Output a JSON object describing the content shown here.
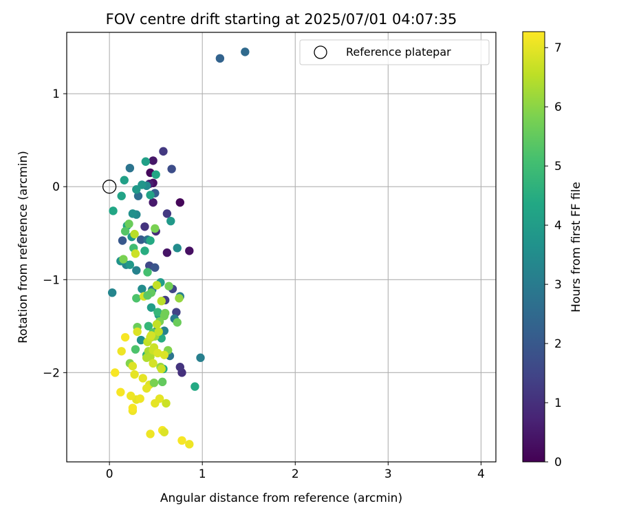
{
  "chart_data": {
    "type": "scatter",
    "title": "FOV centre drift starting at 2025/07/01 04:07:35",
    "xlabel": "Angular distance from reference (arcmin)",
    "ylabel": "Rotation from reference (arcmin)",
    "xlim": [
      -0.46,
      4.16
    ],
    "ylim": [
      -2.96,
      1.66
    ],
    "xticks": [
      0,
      1,
      2,
      3,
      4
    ],
    "xtick_labels": [
      "0",
      "1",
      "2",
      "3",
      "4"
    ],
    "yticks": [
      -2,
      -1,
      0,
      1
    ],
    "ytick_labels": [
      "−2",
      "−1",
      "0",
      "1"
    ],
    "grid": true,
    "legend": {
      "position": "top-right",
      "entries": [
        {
          "label": "Reference platepar",
          "marker": "open-circle"
        }
      ]
    },
    "reference_point": {
      "x": 0,
      "y": 0
    },
    "colorbar": {
      "label": "Hours from first FF file",
      "colormap": "viridis",
      "range": [
        0,
        7.27
      ],
      "ticks": [
        0,
        1,
        2,
        3,
        4,
        5,
        6,
        7
      ],
      "tick_labels": [
        "0",
        "1",
        "2",
        "3",
        "4",
        "5",
        "6",
        "7"
      ]
    },
    "series": [
      {
        "x": [
          0.44,
          0.47,
          0.47,
          0.76,
          0.86,
          0.62,
          0.38,
          0.5,
          0.43,
          0.47,
          0.67,
          0.58,
          0.72,
          0.78,
          0.76,
          0.6,
          0.62,
          0.43,
          0.68,
          0.49,
          0.34,
          0.14,
          0.49,
          0.41,
          0.31,
          0.22,
          1.19,
          1.46,
          0.65,
          0.46,
          0.29,
          0.18,
          0.4,
          0.76,
          0.7,
          0.03,
          0.59,
          0.51,
          0.35,
          0.34,
          0.29,
          0.98,
          0.12,
          0.24,
          0.25,
          0.66,
          0.73,
          0.35,
          0.29,
          0.55,
          0.22,
          0.39,
          0.44,
          0.5,
          0.56,
          0.58,
          0.44,
          0.16,
          0.13,
          0.45,
          0.19,
          0.04,
          0.53,
          0.92,
          0.38,
          0.4,
          0.42,
          0.52,
          0.26,
          0.41,
          0.29,
          0.28,
          0.17,
          0.47,
          0.57,
          0.73,
          0.59,
          0.45,
          0.21,
          0.49,
          0.6,
          0.54,
          0.63,
          0.15,
          0.3,
          0.22,
          0.55,
          0.75,
          0.45,
          0.49,
          0.4,
          0.42,
          0.44,
          0.56,
          0.51,
          0.27,
          0.53,
          0.41,
          0.44,
          0.48,
          0.51,
          0.56,
          0.37,
          0.28,
          0.47,
          0.52,
          0.45,
          0.59,
          0.47,
          0.3,
          0.43,
          0.4,
          0.25,
          0.36,
          0.27,
          0.13,
          0.29,
          0.54,
          0.49,
          0.25,
          0.33,
          0.57,
          0.44,
          0.12,
          0.25,
          0.17,
          0.41,
          0.64,
          0.48,
          0.59,
          0.61,
          0.78,
          0.86,
          0.06,
          0.23
        ],
        "y": [
          0.15,
          0.28,
          0.04,
          -0.17,
          -0.69,
          -0.71,
          -0.43,
          -0.48,
          0.03,
          -0.17,
          0.19,
          0.38,
          -1.35,
          -2.0,
          -1.94,
          -1.22,
          -0.29,
          -0.85,
          -1.1,
          -0.87,
          -0.57,
          -0.58,
          -0.07,
          -0.57,
          -0.1,
          0.2,
          1.38,
          1.45,
          -1.82,
          -1.11,
          -0.9,
          -0.84,
          0.01,
          -1.18,
          -1.42,
          -1.14,
          -1.55,
          -1.55,
          -1.1,
          -1.65,
          -0.3,
          -1.84,
          -0.8,
          -0.54,
          -0.29,
          -0.37,
          -0.66,
          0.02,
          -0.03,
          -1.03,
          -0.84,
          0.27,
          -0.09,
          0.13,
          -1.63,
          -1.96,
          -0.58,
          0.07,
          -0.1,
          -1.3,
          -0.42,
          -0.26,
          -1.38,
          -2.15,
          -0.69,
          -1.81,
          -1.5,
          -1.35,
          -0.66,
          -0.92,
          -1.2,
          -1.75,
          -0.48,
          -1.57,
          -2.1,
          -1.46,
          -1.39,
          -1.14,
          -0.4,
          -0.45,
          -1.36,
          -1.45,
          -1.76,
          -0.78,
          -1.51,
          -1.9,
          -1.94,
          -1.2,
          -1.62,
          -1.61,
          -1.84,
          -1.77,
          -1.83,
          -1.23,
          -1.06,
          -0.51,
          -1.56,
          -1.67,
          -1.62,
          -1.73,
          -1.48,
          -1.96,
          -1.18,
          -0.72,
          -1.76,
          -1.79,
          -1.6,
          -1.81,
          -1.9,
          -1.56,
          -2.13,
          -2.17,
          -1.93,
          -2.06,
          -2.02,
          -1.77,
          -2.29,
          -2.28,
          -2.33,
          -2.41,
          -2.28,
          -2.62,
          -2.66,
          -2.21,
          -2.38,
          -1.62,
          -1.17,
          -1.07,
          -2.11,
          -2.64,
          -2.33,
          -2.73,
          -2.77,
          -2.0,
          -2.25
        ],
        "c": [
          0.15,
          0.45,
          0.3,
          0.1,
          0.3,
          0.4,
          1.1,
          0.9,
          0.6,
          0.5,
          1.7,
          1.2,
          1.4,
          1.0,
          1.1,
          1.3,
          1.2,
          1.6,
          1.5,
          1.9,
          2.1,
          2.0,
          2.2,
          2.7,
          2.6,
          2.8,
          2.3,
          2.5,
          2.8,
          3.0,
          3.2,
          3.3,
          3.4,
          3.1,
          3.0,
          3.3,
          3.2,
          3.0,
          3.5,
          3.6,
          3.4,
          3.1,
          3.7,
          3.8,
          3.6,
          3.9,
          3.5,
          3.8,
          3.9,
          4.0,
          3.9,
          4.1,
          4.2,
          4.3,
          4.5,
          4.4,
          4.4,
          4.1,
          4.2,
          4.0,
          4.2,
          4.3,
          4.1,
          4.4,
          4.5,
          4.6,
          4.8,
          4.8,
          5.0,
          5.1,
          5.2,
          5.2,
          5.3,
          5.3,
          5.5,
          5.6,
          5.7,
          5.5,
          5.6,
          5.8,
          5.7,
          5.8,
          5.9,
          5.8,
          5.6,
          5.9,
          6.1,
          6.1,
          6.2,
          6.2,
          6.4,
          6.3,
          6.4,
          6.5,
          6.6,
          6.5,
          6.6,
          6.6,
          6.7,
          6.7,
          6.6,
          6.7,
          6.8,
          6.7,
          6.7,
          6.9,
          6.8,
          6.9,
          6.8,
          6.9,
          6.9,
          7.0,
          6.9,
          7.0,
          7.0,
          7.1,
          7.0,
          7.0,
          7.0,
          7.1,
          7.1,
          7.2,
          7.1,
          7.2,
          7.2,
          7.2,
          5.4,
          5.7,
          5.8,
          6.9,
          6.7,
          7.2,
          7.1,
          7.2,
          7.1
        ]
      }
    ]
  }
}
